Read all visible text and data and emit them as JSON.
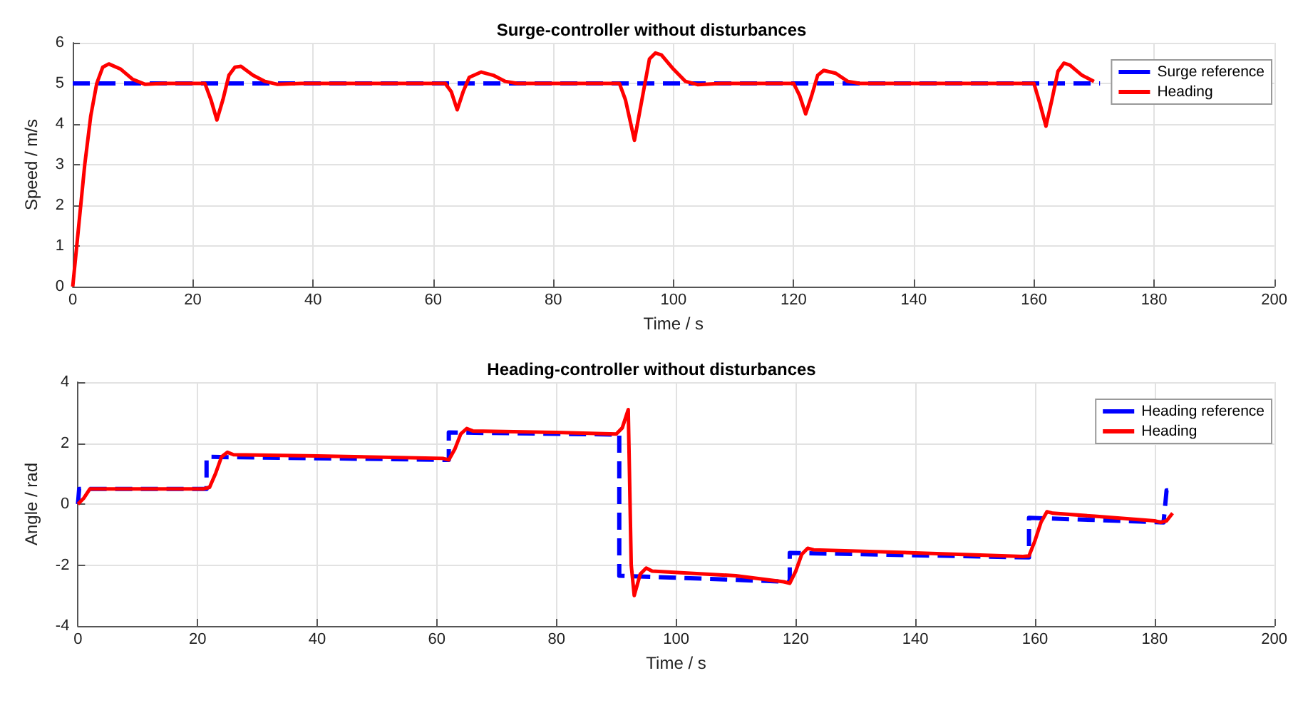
{
  "chart_data": [
    {
      "type": "line",
      "title": "Surge-controller without disturbances",
      "xlabel": "Time / s",
      "ylabel": "Speed / m/s",
      "xlim": [
        0,
        200
      ],
      "xticks": [
        0,
        20,
        40,
        60,
        80,
        100,
        120,
        140,
        160,
        180,
        200
      ],
      "ylim": [
        0,
        6
      ],
      "yticks": [
        0,
        1,
        2,
        3,
        4,
        5,
        6
      ],
      "grid": true,
      "legend": "top right",
      "marker": "none",
      "series": [
        {
          "name": "Surge reference",
          "color": "#0000ff",
          "line_style": "dashed",
          "x": [
            0,
            171
          ],
          "values": [
            5,
            5
          ]
        },
        {
          "name": "Heading",
          "color": "#ff0000",
          "line_style": "solid",
          "x": [
            0,
            1,
            2,
            3,
            4,
            5,
            6,
            8,
            10,
            12,
            15,
            22,
            23,
            24,
            25,
            26,
            27,
            28,
            30,
            32,
            34,
            38,
            62,
            63,
            64,
            65,
            66,
            68,
            70,
            72,
            74,
            91,
            92,
            93.5,
            95,
            96,
            97,
            98,
            100,
            102,
            104,
            108,
            120,
            121,
            122,
            123,
            124,
            125,
            127,
            129,
            131,
            160,
            161,
            162,
            163,
            164,
            165,
            166,
            168,
            170
          ],
          "values": [
            0,
            1.5,
            3,
            4.2,
            5,
            5.4,
            5.48,
            5.35,
            5.1,
            4.98,
            5,
            5,
            4.6,
            4.1,
            4.6,
            5.2,
            5.4,
            5.42,
            5.2,
            5.05,
            4.98,
            5,
            5,
            4.8,
            4.35,
            4.8,
            5.15,
            5.28,
            5.2,
            5.05,
            5,
            5,
            4.6,
            3.6,
            4.8,
            5.6,
            5.75,
            5.7,
            5.35,
            5.05,
            4.97,
            5,
            5,
            4.7,
            4.25,
            4.7,
            5.2,
            5.32,
            5.25,
            5.05,
            5,
            5,
            4.5,
            3.95,
            4.6,
            5.3,
            5.5,
            5.45,
            5.2,
            5.05
          ]
        }
      ]
    },
    {
      "type": "line",
      "title": "Heading-controller without disturbances",
      "xlabel": "Time / s",
      "ylabel": "Angle / rad",
      "xlim": [
        0,
        200
      ],
      "xticks": [
        0,
        20,
        40,
        60,
        80,
        100,
        120,
        140,
        160,
        180,
        200
      ],
      "ylim": [
        -4,
        4
      ],
      "yticks": [
        -4,
        -2,
        0,
        2,
        4
      ],
      "grid": true,
      "legend": "top right",
      "marker": "none",
      "series": [
        {
          "name": "Heading reference",
          "color": "#0000ff",
          "line_style": "dashed",
          "x": [
            0,
            0.2,
            21.5,
            21.5,
            62,
            62,
            90.5,
            90.5,
            119,
            119,
            159,
            159,
            181.5,
            182,
            183
          ],
          "values": [
            0,
            0.5,
            0.5,
            1.55,
            1.45,
            2.35,
            2.28,
            -2.35,
            -2.55,
            -1.6,
            -1.75,
            -0.45,
            -0.6,
            0.45,
            0.45
          ]
        },
        {
          "name": "Heading",
          "color": "#ff0000",
          "line_style": "solid",
          "x": [
            0,
            1,
            2,
            21,
            22,
            23,
            24,
            25,
            26,
            40,
            61,
            62,
            63,
            64,
            65,
            66,
            80,
            90,
            91,
            92,
            92.5,
            93,
            94,
            95,
            96,
            110,
            118,
            119,
            120,
            121,
            122,
            123,
            140,
            158,
            159,
            160,
            161,
            162,
            163,
            170,
            180,
            181,
            182,
            183
          ],
          "values": [
            0,
            0.2,
            0.5,
            0.5,
            0.55,
            1,
            1.55,
            1.7,
            1.62,
            1.58,
            1.5,
            1.45,
            1.8,
            2.3,
            2.48,
            2.4,
            2.35,
            2.3,
            2.5,
            3.1,
            -2,
            -3,
            -2.3,
            -2.1,
            -2.2,
            -2.35,
            -2.55,
            -2.6,
            -2.2,
            -1.65,
            -1.45,
            -1.5,
            -1.6,
            -1.72,
            -1.7,
            -1.2,
            -0.6,
            -0.25,
            -0.3,
            -0.4,
            -0.55,
            -0.6,
            -0.55,
            -0.3
          ]
        }
      ]
    }
  ]
}
